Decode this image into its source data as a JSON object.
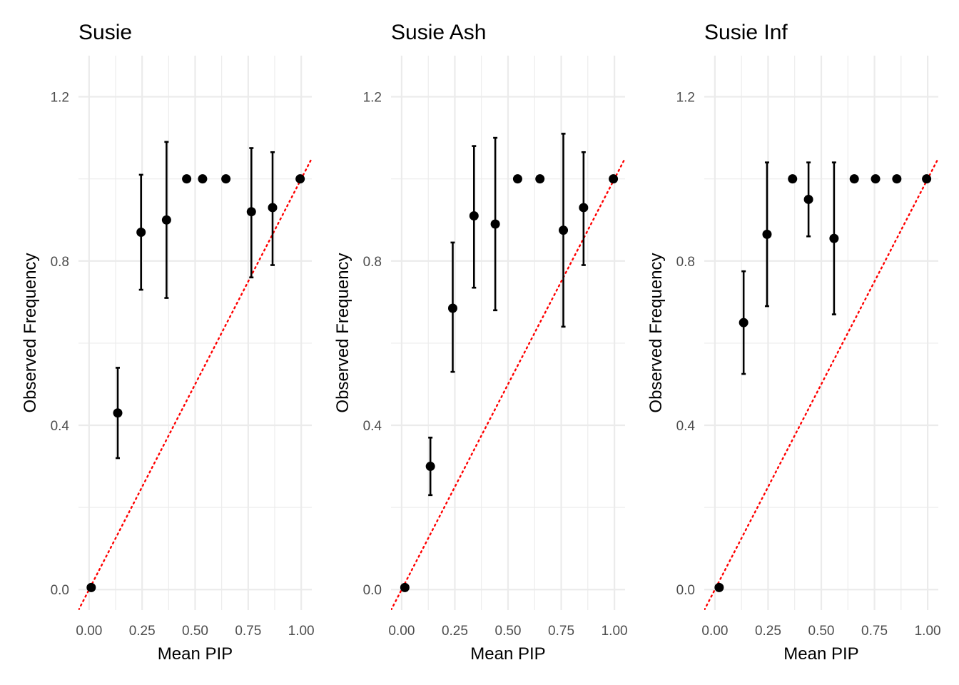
{
  "chart_data": [
    {
      "type": "scatter",
      "title": "Susie",
      "xlabel": "Mean PIP",
      "ylabel": "Observed Frequency",
      "xlim": [
        -0.05,
        1.05
      ],
      "ylim": [
        -0.05,
        1.3
      ],
      "x_ticks": [
        "0.00",
        "0.25",
        "0.50",
        "0.75",
        "1.00"
      ],
      "y_ticks": [
        "0.0",
        "0.4",
        "0.8",
        "1.2"
      ],
      "grid": true,
      "reference_line": {
        "from": [
          -0.05,
          -0.05
        ],
        "to": [
          1.05,
          1.05
        ],
        "color": "#ff0000",
        "style": "dotted"
      },
      "points": [
        {
          "x": 0.01,
          "y": 0.005,
          "ymin": 0.005,
          "ymax": 0.005
        },
        {
          "x": 0.135,
          "y": 0.43,
          "ymin": 0.32,
          "ymax": 0.54
        },
        {
          "x": 0.245,
          "y": 0.87,
          "ymin": 0.73,
          "ymax": 1.01
        },
        {
          "x": 0.365,
          "y": 0.9,
          "ymin": 0.71,
          "ymax": 1.09
        },
        {
          "x": 0.46,
          "y": 1.0,
          "ymin": 1.0,
          "ymax": 1.0
        },
        {
          "x": 0.535,
          "y": 1.0,
          "ymin": 1.0,
          "ymax": 1.0
        },
        {
          "x": 0.645,
          "y": 1.0,
          "ymin": 1.0,
          "ymax": 1.0
        },
        {
          "x": 0.765,
          "y": 0.92,
          "ymin": 0.76,
          "ymax": 1.075
        },
        {
          "x": 0.865,
          "y": 0.93,
          "ymin": 0.79,
          "ymax": 1.065
        },
        {
          "x": 0.995,
          "y": 1.0,
          "ymin": 1.0,
          "ymax": 1.0
        }
      ]
    },
    {
      "type": "scatter",
      "title": "Susie Ash",
      "xlabel": "Mean PIP",
      "ylabel": "Observed Frequency",
      "xlim": [
        -0.05,
        1.05
      ],
      "ylim": [
        -0.05,
        1.3
      ],
      "x_ticks": [
        "0.00",
        "0.25",
        "0.50",
        "0.75",
        "1.00"
      ],
      "y_ticks": [
        "0.0",
        "0.4",
        "0.8",
        "1.2"
      ],
      "grid": true,
      "reference_line": {
        "from": [
          -0.05,
          -0.05
        ],
        "to": [
          1.05,
          1.05
        ],
        "color": "#ff0000",
        "style": "dotted"
      },
      "points": [
        {
          "x": 0.015,
          "y": 0.005,
          "ymin": 0.005,
          "ymax": 0.005
        },
        {
          "x": 0.135,
          "y": 0.3,
          "ymin": 0.23,
          "ymax": 0.37
        },
        {
          "x": 0.24,
          "y": 0.685,
          "ymin": 0.53,
          "ymax": 0.845
        },
        {
          "x": 0.34,
          "y": 0.91,
          "ymin": 0.735,
          "ymax": 1.08
        },
        {
          "x": 0.44,
          "y": 0.89,
          "ymin": 0.68,
          "ymax": 1.1
        },
        {
          "x": 0.545,
          "y": 1.0,
          "ymin": 1.0,
          "ymax": 1.0
        },
        {
          "x": 0.65,
          "y": 1.0,
          "ymin": 1.0,
          "ymax": 1.0
        },
        {
          "x": 0.76,
          "y": 0.875,
          "ymin": 0.64,
          "ymax": 1.11
        },
        {
          "x": 0.855,
          "y": 0.93,
          "ymin": 0.79,
          "ymax": 1.065
        },
        {
          "x": 0.995,
          "y": 1.0,
          "ymin": 1.0,
          "ymax": 1.0
        }
      ]
    },
    {
      "type": "scatter",
      "title": "Susie Inf",
      "xlabel": "Mean PIP",
      "ylabel": "Observed Frequency",
      "xlim": [
        -0.05,
        1.05
      ],
      "ylim": [
        -0.05,
        1.3
      ],
      "x_ticks": [
        "0.00",
        "0.25",
        "0.50",
        "0.75",
        "1.00"
      ],
      "y_ticks": [
        "0.0",
        "0.4",
        "0.8",
        "1.2"
      ],
      "grid": true,
      "reference_line": {
        "from": [
          -0.05,
          -0.05
        ],
        "to": [
          1.05,
          1.05
        ],
        "color": "#ff0000",
        "style": "dotted"
      },
      "points": [
        {
          "x": 0.02,
          "y": 0.005,
          "ymin": 0.005,
          "ymax": 0.005
        },
        {
          "x": 0.135,
          "y": 0.65,
          "ymin": 0.525,
          "ymax": 0.775
        },
        {
          "x": 0.245,
          "y": 0.865,
          "ymin": 0.69,
          "ymax": 1.04
        },
        {
          "x": 0.365,
          "y": 1.0,
          "ymin": 1.0,
          "ymax": 1.0
        },
        {
          "x": 0.44,
          "y": 0.95,
          "ymin": 0.86,
          "ymax": 1.04
        },
        {
          "x": 0.56,
          "y": 0.855,
          "ymin": 0.67,
          "ymax": 1.04
        },
        {
          "x": 0.655,
          "y": 1.0,
          "ymin": 1.0,
          "ymax": 1.0
        },
        {
          "x": 0.755,
          "y": 1.0,
          "ymin": 1.0,
          "ymax": 1.0
        },
        {
          "x": 0.855,
          "y": 1.0,
          "ymin": 1.0,
          "ymax": 1.0
        },
        {
          "x": 0.995,
          "y": 1.0,
          "ymin": 1.0,
          "ymax": 1.0
        }
      ]
    }
  ]
}
